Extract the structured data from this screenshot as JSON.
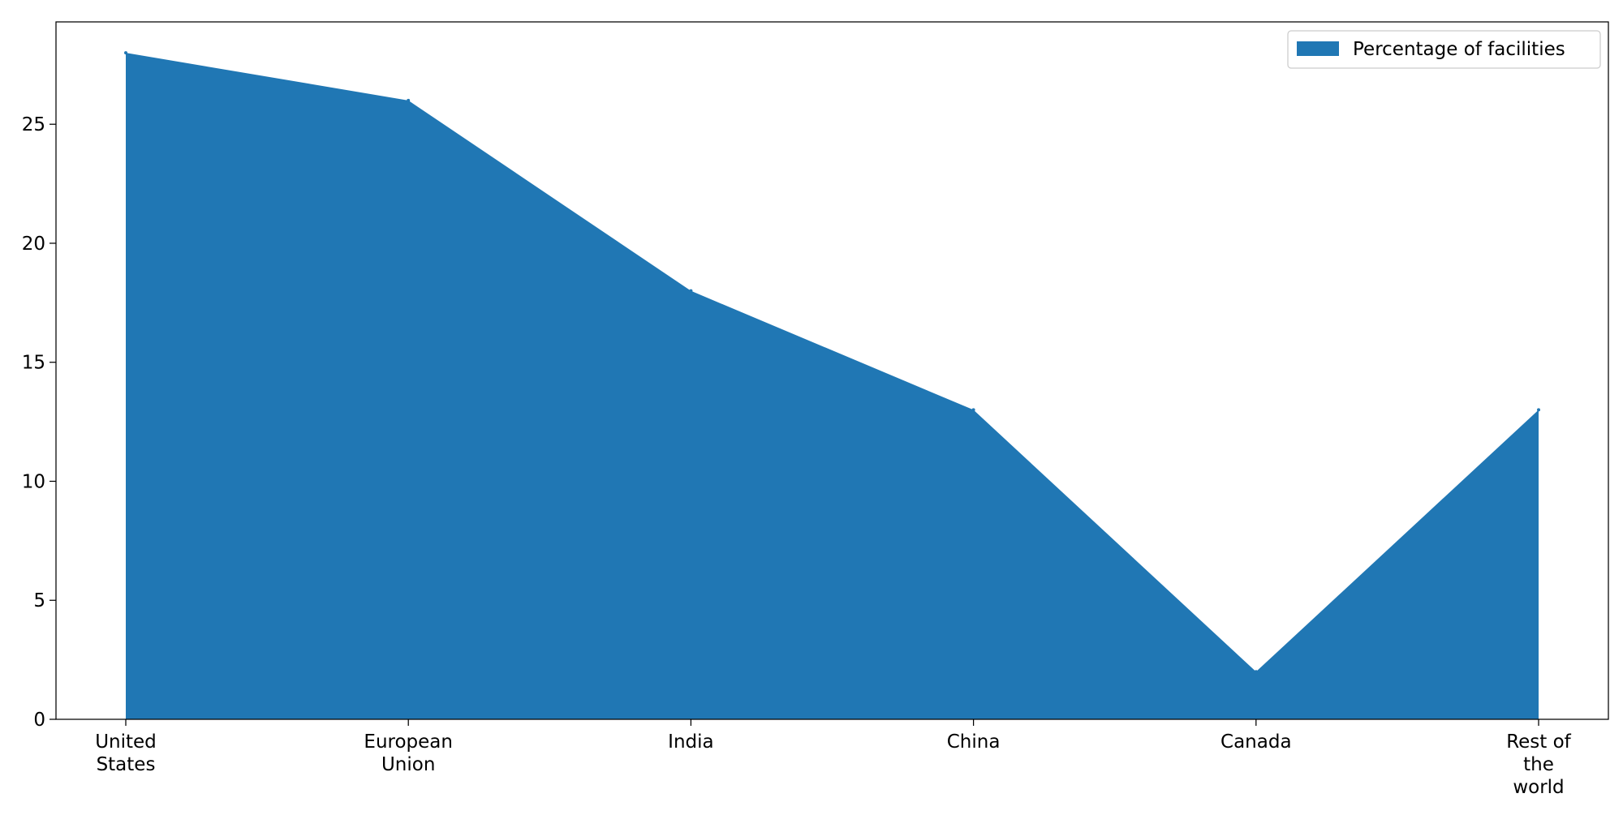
{
  "chart_data": {
    "type": "area",
    "title": "",
    "xlabel": "",
    "ylabel": "",
    "categories": [
      [
        "United",
        "States"
      ],
      [
        "European",
        "Union"
      ],
      [
        "India"
      ],
      [
        "China"
      ],
      [
        "Canada"
      ],
      [
        "Rest of",
        "the",
        "world"
      ]
    ],
    "series": [
      {
        "name": "Percentage of facilities",
        "values": [
          28,
          26,
          18,
          13,
          2,
          13
        ],
        "color": "#2077b4"
      }
    ],
    "ylim": [
      0,
      29.3
    ],
    "yticks": [
      0,
      5,
      10,
      15,
      20,
      25
    ],
    "grid": false,
    "legend_position": "top-right"
  }
}
